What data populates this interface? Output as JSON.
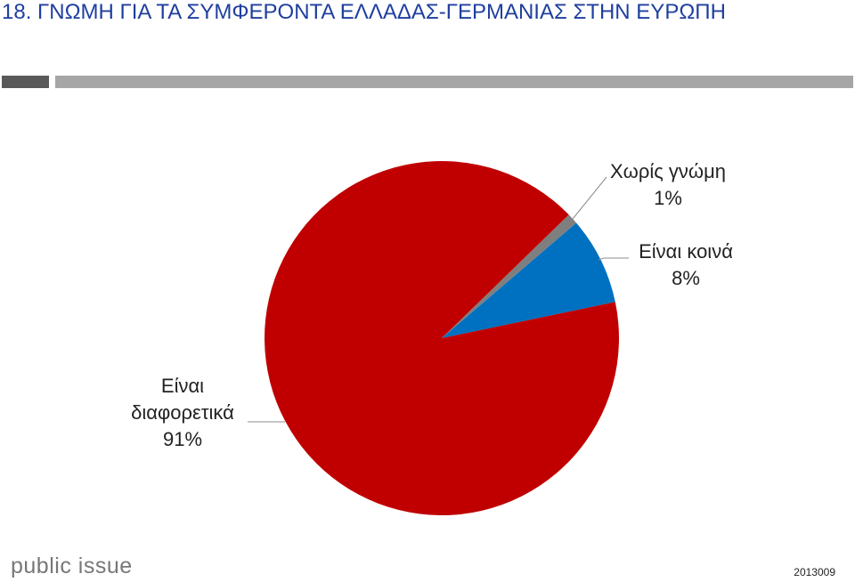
{
  "chart_data": {
    "type": "pie",
    "title": "18. ΓΝΩΜΗ ΓΙΑ ΤΑ ΣΥΜΦΕΡΟΝΤΑ ΕΛΛΑΔΑΣ-ΓΕΡΜΑΝΙΑΣ ΣΤΗΝ ΕΥΡΩΠΗ",
    "categories": [
      "Χωρίς γνώμη",
      "Είναι κοινά",
      "Είναι διαφορετικά"
    ],
    "values": [
      1,
      8,
      91
    ],
    "value_labels": [
      "1%",
      "8%",
      "91%"
    ],
    "colors": [
      "#7f7f7f",
      "#0070c0",
      "#c00000"
    ]
  },
  "footer": {
    "logo": "public issue",
    "code": "2013009"
  }
}
